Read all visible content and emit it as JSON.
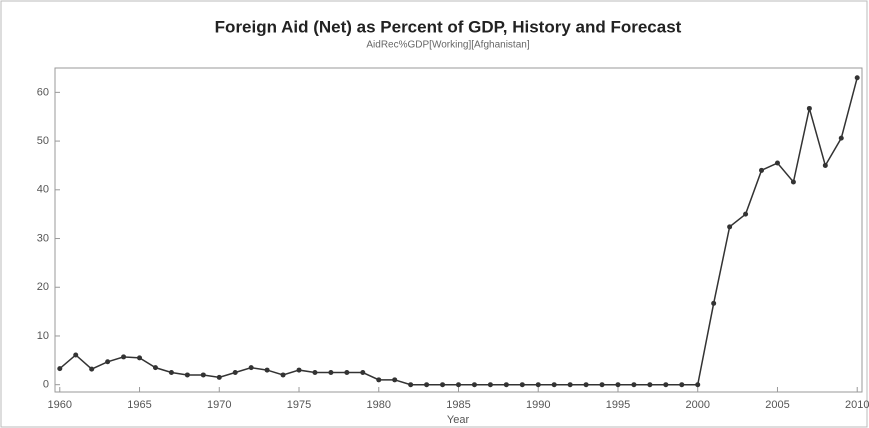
{
  "chart_data": {
    "type": "line",
    "title": "Foreign Aid (Net) as Percent of GDP, History and Forecast",
    "subtitle": "AidRec%GDP[Working][Afghanistan]",
    "x_label": "Year",
    "x": [
      1960,
      1961,
      1962,
      1963,
      1964,
      1965,
      1966,
      1967,
      1968,
      1969,
      1970,
      1971,
      1972,
      1973,
      1974,
      1975,
      1976,
      1977,
      1978,
      1979,
      1980,
      1981,
      1982,
      1983,
      1984,
      1985,
      1986,
      1987,
      1988,
      1989,
      1990,
      1991,
      1992,
      1993,
      1994,
      1995,
      1996,
      1997,
      1998,
      1999,
      2000,
      2001,
      2002,
      2003,
      2004,
      2005,
      2006,
      2007,
      2008,
      2009,
      2010
    ],
    "series": [
      {
        "name": "AidRec%GDP",
        "color": "#333333",
        "values": [
          3.3,
          6.1,
          3.2,
          4.7,
          5.7,
          5.5,
          3.5,
          2.5,
          2,
          2,
          1.5,
          2.5,
          3.5,
          3,
          2,
          3,
          2.5,
          2.5,
          2.5,
          2.5,
          1,
          1,
          0,
          0,
          0,
          0,
          0,
          0,
          0,
          0,
          0,
          0,
          0,
          0,
          0,
          0,
          0,
          0,
          0,
          0,
          0,
          16.7,
          32.4,
          35,
          44,
          45.5,
          41.6,
          56.7,
          45,
          50.6,
          63
        ]
      }
    ],
    "xlim": [
      1959.7,
      2010.3
    ],
    "xticks": [
      1960,
      1965,
      1970,
      1975,
      1980,
      1985,
      1990,
      1995,
      2000,
      2005,
      2010
    ],
    "ylim": [
      -1.5,
      65
    ],
    "yticks": [
      0,
      10,
      20,
      30,
      40,
      50,
      60
    ],
    "grid": false
  }
}
